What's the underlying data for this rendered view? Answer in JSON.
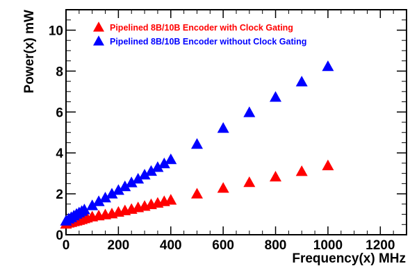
{
  "chart_data": {
    "type": "scatter",
    "xlabel": "Frequency(x) MHz",
    "ylabel": "Power(x) mW",
    "xlim": [
      0,
      1300
    ],
    "ylim": [
      0,
      11
    ],
    "xticks": [
      0,
      200,
      400,
      600,
      800,
      1000,
      1200
    ],
    "yticks": [
      0,
      2,
      4,
      6,
      8,
      10
    ],
    "xtick_labels": [
      "0",
      "200",
      "400",
      "600",
      "800",
      "1000",
      "1200"
    ],
    "ytick_labels": [
      "0",
      "2",
      "4",
      "6",
      "8",
      "10"
    ],
    "grid": false,
    "legend_position": "top",
    "marker": "triangle",
    "series": [
      {
        "name": "Pipelined 8B/10B Encoder with Clock Gating",
        "color": "#ff0000",
        "x": [
          0,
          10,
          20,
          30,
          40,
          50,
          60,
          70,
          80,
          100,
          125,
          150,
          175,
          200,
          225,
          250,
          275,
          300,
          325,
          350,
          375,
          400,
          500,
          600,
          700,
          800,
          900,
          1000
        ],
        "y": [
          0.5,
          0.55,
          0.58,
          0.62,
          0.65,
          0.68,
          0.72,
          0.76,
          0.8,
          0.85,
          0.9,
          0.95,
          1.0,
          1.08,
          1.15,
          1.22,
          1.3,
          1.37,
          1.45,
          1.52,
          1.6,
          1.67,
          1.97,
          2.25,
          2.53,
          2.8,
          3.07,
          3.35
        ]
      },
      {
        "name": "Pipelined 8B/10B Encoder without Clock Gating",
        "color": "#0000ff",
        "x": [
          0,
          10,
          20,
          30,
          40,
          50,
          60,
          70,
          100,
          125,
          150,
          175,
          200,
          225,
          250,
          275,
          300,
          325,
          350,
          375,
          400,
          500,
          600,
          700,
          800,
          900,
          1000
        ],
        "y": [
          0.65,
          0.75,
          0.82,
          0.9,
          0.98,
          1.05,
          1.12,
          1.2,
          1.4,
          1.6,
          1.78,
          1.97,
          2.15,
          2.33,
          2.52,
          2.7,
          2.9,
          3.08,
          3.27,
          3.45,
          3.65,
          4.4,
          5.18,
          5.95,
          6.7,
          7.45,
          8.2
        ]
      }
    ]
  }
}
